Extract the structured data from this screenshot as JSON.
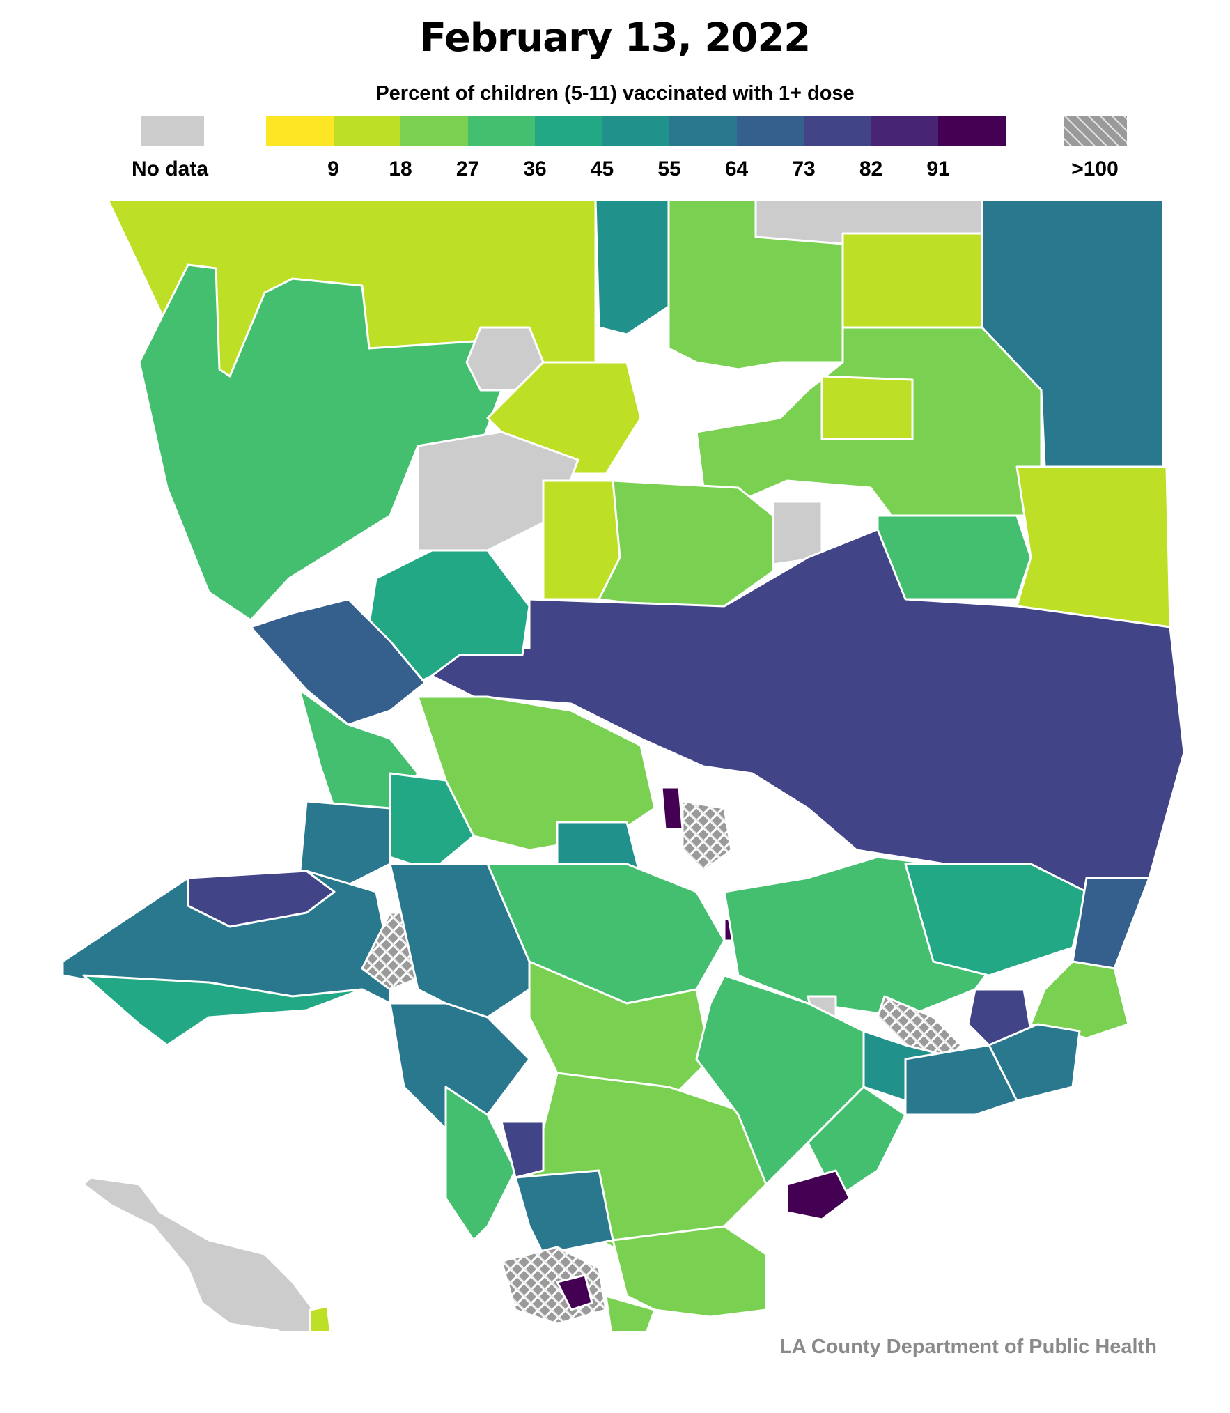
{
  "title": "February 13, 2022",
  "subtitle": "Percent of children (5-11) vaccinated with 1+ dose",
  "legend": {
    "no_data_label": "No data",
    "no_data_color": "#cccccc",
    "over_label": ">100",
    "over_color": "#9a9a9a",
    "bins": [
      {
        "color": "#fde725"
      },
      {
        "color": "#bddf26"
      },
      {
        "color": "#7ad151"
      },
      {
        "color": "#44bf70"
      },
      {
        "color": "#22a884"
      },
      {
        "color": "#21918c"
      },
      {
        "color": "#2a788e"
      },
      {
        "color": "#355f8d"
      },
      {
        "color": "#414487"
      },
      {
        "color": "#482475"
      },
      {
        "color": "#440154"
      }
    ],
    "ticks": [
      "9",
      "18",
      "27",
      "36",
      "45",
      "55",
      "64",
      "73",
      "82",
      "91"
    ]
  },
  "source": "LA County Department of Public Health"
}
